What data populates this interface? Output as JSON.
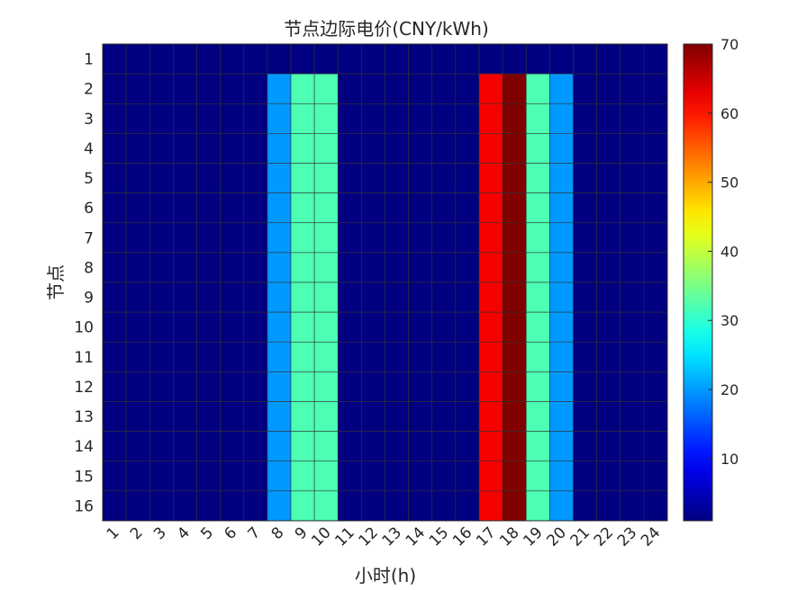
{
  "chart_data": {
    "type": "heatmap",
    "title": "节点边际电价(CNY/kWh)",
    "xlabel": "小时(h)",
    "ylabel": "节点",
    "x_categories": [
      "1",
      "2",
      "3",
      "4",
      "5",
      "6",
      "7",
      "8",
      "9",
      "10",
      "11",
      "12",
      "13",
      "14",
      "15",
      "16",
      "17",
      "18",
      "19",
      "20",
      "21",
      "22",
      "23",
      "24"
    ],
    "y_categories": [
      "1",
      "2",
      "3",
      "4",
      "5",
      "6",
      "7",
      "8",
      "9",
      "10",
      "11",
      "12",
      "13",
      "14",
      "15",
      "16"
    ],
    "node1_values": [
      1,
      1,
      1,
      1,
      1,
      1,
      1,
      1,
      1,
      1,
      1,
      1,
      1,
      1,
      1,
      1,
      1,
      1,
      1,
      1,
      1,
      1,
      1,
      1
    ],
    "node2_to_16_values": [
      1,
      1,
      1,
      1,
      1,
      1,
      1,
      20,
      32,
      32,
      1,
      1,
      1,
      1,
      1,
      1,
      62,
      70,
      32,
      20,
      1,
      1,
      1,
      1
    ],
    "colormap": "jet",
    "clim": [
      1,
      70
    ],
    "colorbar_ticks": [
      10,
      20,
      30,
      40,
      50,
      60,
      70
    ],
    "grid": true
  }
}
